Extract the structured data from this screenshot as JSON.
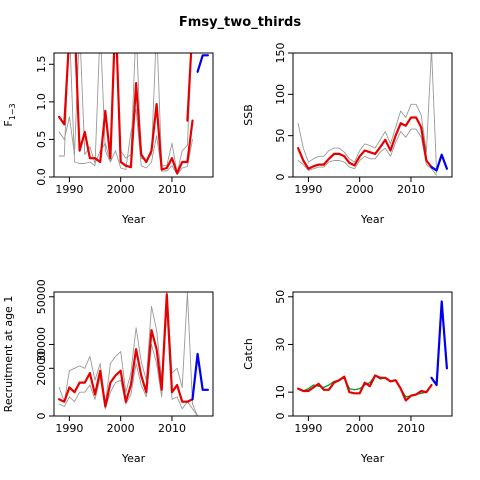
{
  "title": "Fmsy_two_thirds",
  "colors": {
    "hist": "#e60000",
    "proj": "#0000ee",
    "ci": "#999999",
    "obs": "#009933"
  },
  "chart_data": [
    {
      "type": "line",
      "ylabel": "F",
      "ylabel_sub": "1−3",
      "xlabel": "Year",
      "xlim": [
        1987,
        2018
      ],
      "ylim": [
        0,
        1.65
      ],
      "xticks": [
        1990,
        2000,
        2010
      ],
      "yticks": [
        0.0,
        0.5,
        1.0,
        1.5
      ],
      "ytick_labels": [
        "0.0",
        "0.5",
        "1.0",
        "1.5"
      ],
      "series": [
        {
          "role": "hist",
          "x": [
            1988,
            1989,
            1990,
            1991,
            1992,
            1993,
            1994,
            1995,
            1996,
            1997,
            1998,
            1999,
            2000,
            2001,
            2002,
            2003,
            2004,
            2005,
            2006,
            2007,
            2008,
            2009,
            2010,
            2011,
            2012,
            2013,
            2014
          ],
          "y": [
            0.8,
            0.7,
            1.9,
            2.1,
            0.35,
            0.6,
            0.25,
            0.25,
            0.2,
            0.88,
            0.25,
            2.2,
            0.2,
            0.15,
            0.13,
            1.25,
            0.3,
            0.2,
            0.35,
            0.97,
            0.1,
            0.12,
            0.25,
            0.05,
            0.2,
            0.2,
            0.75
          ]
        },
        {
          "role": "hist_up",
          "x": [
            2013,
            2014
          ],
          "y": [
            0.75,
            2.0
          ]
        },
        {
          "role": "proj",
          "x": [
            2015,
            2016,
            2017
          ],
          "y": [
            1.4,
            1.62,
            1.62
          ]
        },
        {
          "role": "ci",
          "x": [
            1988,
            1989,
            1990,
            1991,
            1992,
            1993,
            1994,
            1995,
            1996,
            1997,
            1998,
            1999,
            2000,
            2001,
            2002,
            2003,
            2004,
            2005,
            2006,
            2007,
            2008,
            2009,
            2010,
            2011,
            2012,
            2013,
            2014
          ],
          "y": [
            0.28,
            0.28,
            2.0,
            0.2,
            0.18,
            0.18,
            0.2,
            0.15,
            2.0,
            0.35,
            0.2,
            2.0,
            0.35,
            0.25,
            0.3,
            2.0,
            0.25,
            0.22,
            0.3,
            2.0,
            0.15,
            0.15,
            0.45,
            0.05,
            0.35,
            0.42,
            2.0
          ]
        },
        {
          "role": "ci",
          "x": [
            1988,
            1989,
            1990,
            1991,
            1992,
            1993,
            1994,
            1995,
            1996,
            1997,
            1998,
            1999,
            2000,
            2001,
            2002,
            2003,
            2004,
            2005,
            2006,
            2007,
            2008,
            2009,
            2010,
            2011,
            2012,
            2013,
            2014
          ],
          "y": [
            0.6,
            0.5,
            0.8,
            0.3,
            2.0,
            0.3,
            0.4,
            0.18,
            0.35,
            0.45,
            0.2,
            0.35,
            0.12,
            0.1,
            0.6,
            0.9,
            0.15,
            0.12,
            0.2,
            0.55,
            0.08,
            0.08,
            0.15,
            0.03,
            0.12,
            0.14,
            0.5
          ]
        }
      ]
    },
    {
      "type": "line",
      "ylabel": "SSB",
      "xlabel": "Year",
      "xlim": [
        1987,
        2018
      ],
      "ylim": [
        0,
        150
      ],
      "xticks": [
        1990,
        2000,
        2010
      ],
      "yticks": [
        0,
        50,
        100,
        150
      ],
      "ytick_labels": [
        "0",
        "50",
        "100",
        "150"
      ],
      "series": [
        {
          "role": "ci",
          "x": [
            1988,
            1989,
            1990,
            1991,
            1992,
            1993,
            1994,
            1995,
            1996,
            1997,
            1998,
            1999,
            2000,
            2001,
            2002,
            2003,
            2004,
            2005,
            2006,
            2007,
            2008,
            2009,
            2010,
            2011,
            2012,
            2013,
            2014,
            2015
          ],
          "y": [
            65,
            35,
            18,
            22,
            25,
            25,
            32,
            35,
            35,
            30,
            22,
            18,
            32,
            40,
            38,
            35,
            45,
            55,
            40,
            60,
            80,
            72,
            88,
            88,
            75,
            30,
            155,
            5
          ]
        },
        {
          "role": "ci",
          "x": [
            1988,
            1989,
            1990,
            1991,
            1992,
            1993,
            1994,
            1995,
            1996,
            1997,
            1998,
            1999,
            2000,
            2001,
            2002,
            2003,
            2004,
            2005,
            2006,
            2007,
            2008,
            2009,
            2010,
            2011,
            2012,
            2013,
            2014,
            2015
          ],
          "y": [
            20,
            15,
            8,
            10,
            12,
            12,
            18,
            20,
            20,
            18,
            12,
            10,
            20,
            25,
            22,
            22,
            30,
            35,
            25,
            42,
            55,
            48,
            58,
            58,
            48,
            15,
            10,
            2
          ]
        },
        {
          "role": "hist",
          "x": [
            1988,
            1989,
            1990,
            1991,
            1992,
            1993,
            1994,
            1995,
            1996,
            1997,
            1998,
            1999,
            2000,
            2001,
            2002,
            2003,
            2004,
            2005,
            2006,
            2007,
            2008,
            2009,
            2010,
            2011,
            2012,
            2013,
            2014
          ],
          "y": [
            35,
            20,
            10,
            13,
            15,
            15,
            22,
            28,
            28,
            25,
            17,
            14,
            25,
            32,
            30,
            28,
            36,
            45,
            32,
            50,
            65,
            62,
            72,
            72,
            60,
            20,
            12
          ]
        },
        {
          "role": "proj",
          "x": [
            2014,
            2015,
            2016,
            2017
          ],
          "y": [
            12,
            8,
            27,
            10
          ]
        }
      ]
    },
    {
      "type": "line",
      "ylabel": "Recruitment at age 1",
      "xlabel": "Year",
      "xlim": [
        1987,
        2018
      ],
      "ylim": [
        0,
        52000
      ],
      "xticks": [
        1990,
        2000,
        2010
      ],
      "yticks": [
        0,
        20000,
        30000,
        50000
      ],
      "ytick_labels": [
        "0",
        "20000",
        "30000",
        "50000"
      ],
      "series": [
        {
          "role": "ci",
          "x": [
            1988,
            1989,
            1990,
            1991,
            1992,
            1993,
            1994,
            1995,
            1996,
            1997,
            1998,
            1999,
            2000,
            2001,
            2002,
            2003,
            2004,
            2005,
            2006,
            2007,
            2008,
            2009,
            2010,
            2011,
            2012,
            2013,
            2014,
            2015
          ],
          "y": [
            12000,
            6000,
            19000,
            20000,
            21000,
            20000,
            25000,
            15000,
            22000,
            5000,
            22000,
            25000,
            27000,
            10000,
            18000,
            37000,
            23000,
            15000,
            46000,
            36000,
            15000,
            53000,
            18000,
            20000,
            12000,
            52000,
            5000,
            0
          ]
        },
        {
          "role": "ci",
          "x": [
            1988,
            1989,
            1990,
            1991,
            1992,
            1993,
            1994,
            1995,
            1996,
            1997,
            1998,
            1999,
            2000,
            2001,
            2002,
            2003,
            2004,
            2005,
            2006,
            2007,
            2008,
            2009,
            2010,
            2011,
            2012,
            2013,
            2014,
            2015
          ],
          "y": [
            5000,
            4000,
            8000,
            6000,
            10000,
            10000,
            13000,
            7000,
            16000,
            3000,
            10000,
            14000,
            15000,
            5000,
            9000,
            22000,
            13000,
            8000,
            30000,
            22000,
            8000,
            45000,
            7000,
            8000,
            3000,
            6000,
            3000,
            0
          ]
        },
        {
          "role": "hist",
          "x": [
            1988,
            1989,
            1990,
            1991,
            1992,
            1993,
            1994,
            1995,
            1996,
            1997,
            1998,
            1999,
            2000,
            2001,
            2002,
            2003,
            2004,
            2005,
            2006,
            2007,
            2008,
            2009,
            2010,
            2011,
            2012,
            2013,
            2014
          ],
          "y": [
            7000,
            6000,
            12000,
            10000,
            14000,
            14000,
            18000,
            9000,
            19000,
            4000,
            14000,
            17000,
            19000,
            6000,
            13000,
            28000,
            17000,
            10000,
            36000,
            28000,
            11000,
            51000,
            10000,
            13000,
            6000,
            6000,
            7000
          ]
        },
        {
          "role": "proj",
          "x": [
            2014,
            2015,
            2016,
            2017
          ],
          "y": [
            7000,
            26000,
            11000,
            11000
          ]
        }
      ]
    },
    {
      "type": "line",
      "ylabel": "Catch",
      "xlabel": "Year",
      "xlim": [
        1987,
        2018
      ],
      "ylim": [
        0,
        52
      ],
      "xticks": [
        1990,
        2000,
        2010
      ],
      "yticks": [
        0,
        10,
        30,
        50
      ],
      "ytick_labels": [
        "0",
        "10",
        "30",
        "50"
      ],
      "series": [
        {
          "role": "obs",
          "x": [
            1988,
            1989,
            1990,
            1991,
            1992,
            1993,
            1994,
            1995,
            1996,
            1997,
            1998,
            1999,
            2000,
            2001,
            2002,
            2003,
            2004,
            2005,
            2006,
            2007,
            2008,
            2009,
            2010,
            2011,
            2012,
            2013,
            2014
          ],
          "y": [
            11.5,
            10.5,
            11.5,
            13,
            12.5,
            12,
            13,
            14.5,
            15,
            16,
            11.5,
            11,
            11.5,
            13,
            14,
            17,
            15.5,
            16,
            14.5,
            15,
            11.5,
            8,
            8.5,
            9,
            9.5,
            10,
            13
          ]
        },
        {
          "role": "hist",
          "x": [
            1988,
            1989,
            1990,
            1991,
            1992,
            1993,
            1994,
            1995,
            1996,
            1997,
            1998,
            1999,
            2000,
            2001,
            2002,
            2003,
            2004,
            2005,
            2006,
            2007,
            2008,
            2009,
            2010,
            2011,
            2012,
            2013,
            2014
          ],
          "y": [
            11.5,
            10.5,
            10.5,
            12,
            13.5,
            11,
            11,
            14,
            15,
            16.5,
            10,
            9.5,
            9.5,
            14,
            12.5,
            17,
            16,
            16,
            14.5,
            15,
            11.5,
            6.5,
            8.5,
            9,
            10.5,
            10,
            13
          ]
        },
        {
          "role": "proj",
          "x": [
            2014,
            2015,
            2016,
            2017
          ],
          "y": [
            16,
            13,
            48,
            20
          ]
        }
      ]
    }
  ]
}
